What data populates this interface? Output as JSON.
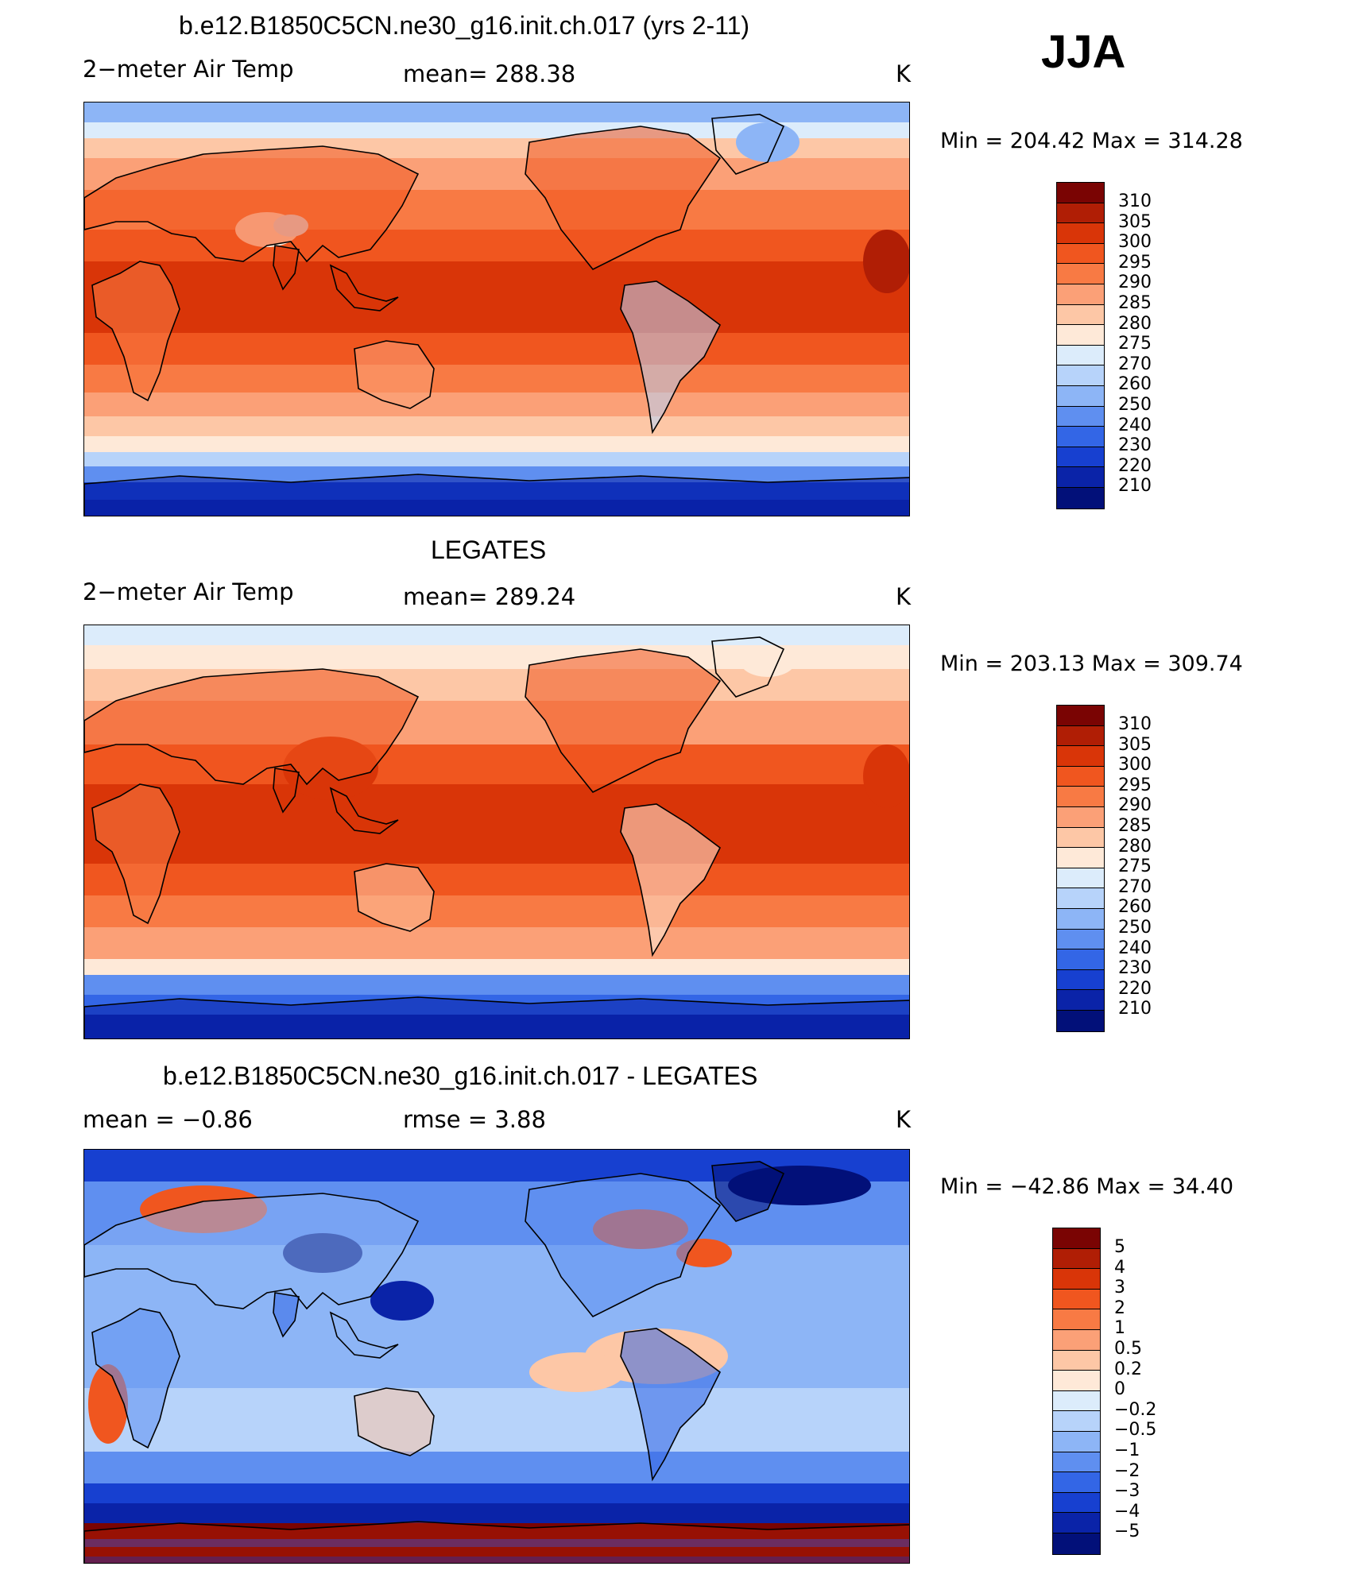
{
  "figure": {
    "season": "JJA",
    "panels": [
      {
        "id": "model",
        "title": "b.e12.B1850C5CN.ne30_g16.init.ch.017 (yrs 2-11)",
        "left_label": "2−meter Air Temp",
        "center_label": "mean=  288.38",
        "units": "K",
        "minmax": "Min  =  204.42  Max  =  314.28",
        "colorbar_labels": [
          "310",
          "305",
          "300",
          "295",
          "290",
          "285",
          "280",
          "275",
          "270",
          "260",
          "250",
          "240",
          "230",
          "220",
          "210"
        ]
      },
      {
        "id": "obs",
        "title": "LEGATES",
        "left_label": "2−meter Air Temp",
        "center_label": "mean=  289.24",
        "units": "K",
        "minmax": "Min  =  203.13  Max  =  309.74",
        "colorbar_labels": [
          "310",
          "305",
          "300",
          "295",
          "290",
          "285",
          "280",
          "275",
          "270",
          "260",
          "250",
          "240",
          "230",
          "220",
          "210"
        ]
      },
      {
        "id": "diff",
        "title": "b.e12.B1850C5CN.ne30_g16.init.ch.017 - LEGATES",
        "left_label": "mean =    −0.86",
        "center_label": "rmse =     3.88",
        "units": "K",
        "minmax": "Min  =  −42.86  Max  =    34.40",
        "colorbar_labels": [
          "5",
          "4",
          "3",
          "2",
          "1",
          "0.5",
          "0.2",
          "0",
          "−0.2",
          "−0.5",
          "−1",
          "−2",
          "−3",
          "−4",
          "−5"
        ]
      }
    ],
    "palette": [
      "#7a0403",
      "#b01e05",
      "#d93508",
      "#f0561f",
      "#f87a44",
      "#fba077",
      "#fdc7a6",
      "#fee9d8",
      "#dcecfb",
      "#b7d3fa",
      "#8db5f6",
      "#5f8ff0",
      "#3366e6",
      "#1740d0",
      "#0a23a8",
      "#021079"
    ]
  }
}
